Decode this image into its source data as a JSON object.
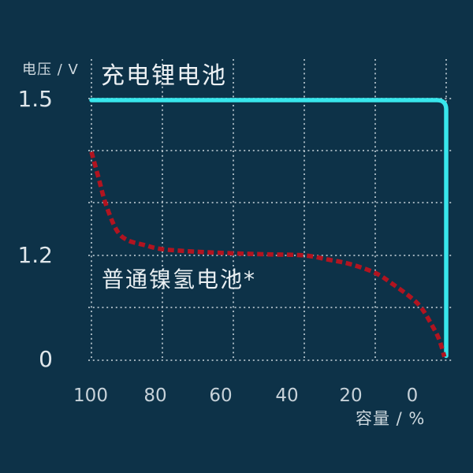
{
  "colors": {
    "background": "#0d3248",
    "lithium_line": "#38e6ec",
    "nimh_line": "#b11420",
    "grid_dots": "#bfccd4",
    "title_text": "#eef2f5",
    "tick_text": "#c7d2d9",
    "axis_label_text": "#cdd8de"
  },
  "y_axis": {
    "label": "电压 / V",
    "ticks": [
      "1.5",
      "1.2",
      "0"
    ]
  },
  "x_axis": {
    "label": "容量 / %",
    "ticks": [
      "100",
      "80",
      "60",
      "40",
      "20",
      "0"
    ]
  },
  "series_labels": {
    "lithium": "充电锂电池",
    "nimh": "普通镍氢电池*"
  },
  "chart_data": {
    "type": "line",
    "title": "",
    "xlabel": "容量 / %",
    "ylabel": "电压 / V",
    "x_ticks": [
      100,
      80,
      60,
      40,
      20,
      0
    ],
    "x_direction": "reversed (100% at left, 0% at right)",
    "y_ticks": [
      1.5,
      1.2,
      0
    ],
    "y_axis_note": "non-linear axis: 1.5-1.2 V band expanded, 1.2-0 V band compressed",
    "grid": "dotted",
    "legend_position": "inline labels next to curves",
    "series": [
      {
        "name": "充电锂电池",
        "style": "solid",
        "color": "#38e6ec",
        "points": [
          [
            100,
            1.5
          ],
          [
            80,
            1.5
          ],
          [
            60,
            1.5
          ],
          [
            40,
            1.5
          ],
          [
            20,
            1.5
          ],
          [
            0,
            1.5
          ],
          [
            0,
            0.05
          ]
        ]
      },
      {
        "name": "普通镍氢电池*",
        "style": "dashed",
        "color": "#b11420",
        "points": [
          [
            100,
            1.4
          ],
          [
            98,
            1.35
          ],
          [
            96,
            1.3
          ],
          [
            93,
            1.25
          ],
          [
            90,
            1.23
          ],
          [
            85,
            1.22
          ],
          [
            80,
            1.212
          ],
          [
            70,
            1.207
          ],
          [
            60,
            1.204
          ],
          [
            50,
            1.202
          ],
          [
            40,
            1.2
          ],
          [
            33,
            1.15
          ],
          [
            27,
            1.1
          ],
          [
            20,
            1.0
          ],
          [
            15,
            0.87
          ],
          [
            10,
            0.72
          ],
          [
            7,
            0.6
          ],
          [
            4,
            0.4
          ],
          [
            2,
            0.24
          ],
          [
            0.5,
            0.04
          ]
        ]
      }
    ]
  }
}
